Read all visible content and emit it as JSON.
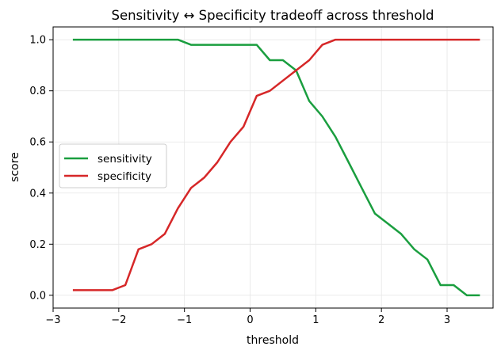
{
  "chart_data": {
    "type": "line",
    "title": "Sensitivity ↔ Specificity tradeoff across threshold",
    "xlabel": "threshold",
    "ylabel": "score",
    "xlim": [
      -3.0,
      3.7
    ],
    "ylim": [
      -0.05,
      1.05
    ],
    "xticks": [
      -3,
      -2,
      -1,
      0,
      1,
      2,
      3
    ],
    "yticks": [
      0.0,
      0.2,
      0.4,
      0.6,
      0.8,
      1.0
    ],
    "xtick_labels": [
      "−3",
      "−2",
      "−1",
      "0",
      "1",
      "2",
      "3"
    ],
    "ytick_labels": [
      "0.0",
      "0.2",
      "0.4",
      "0.6",
      "0.8",
      "1.0"
    ],
    "grid": true,
    "legend_position": "center-left",
    "x": [
      -2.7,
      -2.5,
      -2.3,
      -2.1,
      -1.9,
      -1.7,
      -1.5,
      -1.3,
      -1.1,
      -0.9,
      -0.7,
      -0.5,
      -0.3,
      -0.1,
      0.1,
      0.3,
      0.5,
      0.7,
      0.9,
      1.1,
      1.3,
      1.5,
      1.7,
      1.9,
      2.1,
      2.3,
      2.5,
      2.7,
      2.9,
      3.1,
      3.3,
      3.5
    ],
    "series": [
      {
        "name": "sensitivity",
        "color": "#1a9e3f",
        "values": [
          1.0,
          1.0,
          1.0,
          1.0,
          1.0,
          1.0,
          1.0,
          1.0,
          1.0,
          0.98,
          0.98,
          0.98,
          0.98,
          0.98,
          0.98,
          0.92,
          0.92,
          0.88,
          0.76,
          0.7,
          0.62,
          0.52,
          0.42,
          0.32,
          0.28,
          0.24,
          0.18,
          0.14,
          0.04,
          0.04,
          0.0,
          0.0
        ]
      },
      {
        "name": "specificity",
        "color": "#d62728",
        "values": [
          0.02,
          0.02,
          0.02,
          0.02,
          0.04,
          0.18,
          0.2,
          0.24,
          0.34,
          0.42,
          0.46,
          0.52,
          0.6,
          0.66,
          0.78,
          0.8,
          0.84,
          0.88,
          0.92,
          0.98,
          1.0,
          1.0,
          1.0,
          1.0,
          1.0,
          1.0,
          1.0,
          1.0,
          1.0,
          1.0,
          1.0,
          1.0
        ]
      }
    ]
  }
}
